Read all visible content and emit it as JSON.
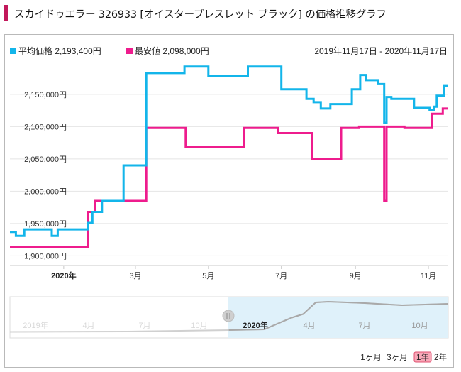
{
  "title": "スカイドゥエラー 326933 [オイスターブレスレット ブラック] の価格推移グラフ",
  "legend": {
    "avg_label": "平均価格 2,193,400円",
    "min_label": "最安値 2,098,000円",
    "date_range": "2019年11月17日 - 2020年11月17日"
  },
  "colors": {
    "avg": "#13b5ea",
    "min": "#ee1c8d",
    "accent": "#c2185b",
    "grid": "#e4e4e4"
  },
  "navigator": {
    "labels_old": [
      "2019年",
      "4月",
      "7月",
      "10月"
    ],
    "labels_new": [
      "2020年",
      "4月",
      "7月",
      "10月"
    ]
  },
  "range_buttons": [
    {
      "label": "1ヶ月",
      "selected": false
    },
    {
      "label": "3ヶ月",
      "selected": false
    },
    {
      "label": "1年",
      "selected": true
    },
    {
      "label": "2年",
      "selected": false
    }
  ],
  "chart_data": {
    "type": "line",
    "x_range": [
      "2019-11-17",
      "2020-11-17"
    ],
    "ylim": [
      1885000,
      2195000
    ],
    "y_ticks": [
      1900000,
      1950000,
      2000000,
      2050000,
      2100000,
      2150000
    ],
    "y_tick_labels": [
      "1,900,000円",
      "1,950,000円",
      "2,000,000円",
      "2,050,000円",
      "2,100,000円",
      "2,150,000円"
    ],
    "x_ticks": [
      {
        "date": "2020-01-01",
        "label": "2020年",
        "bold": true
      },
      {
        "date": "2020-03-01",
        "label": "3月",
        "bold": false
      },
      {
        "date": "2020-05-01",
        "label": "5月",
        "bold": false
      },
      {
        "date": "2020-07-01",
        "label": "7月",
        "bold": false
      },
      {
        "date": "2020-09-01",
        "label": "9月",
        "bold": false
      },
      {
        "date": "2020-11-01",
        "label": "11月",
        "bold": false
      }
    ],
    "step": true,
    "series": [
      {
        "name": "平均価格",
        "points": [
          [
            "2019-11-17",
            1937000
          ],
          [
            "2019-11-22",
            1931000
          ],
          [
            "2019-11-29",
            1941000
          ],
          [
            "2019-12-22",
            1931000
          ],
          [
            "2019-12-27",
            1941000
          ],
          [
            "2020-01-21",
            1951000
          ],
          [
            "2020-01-25",
            1968000
          ],
          [
            "2020-02-02",
            1985000
          ],
          [
            "2020-02-20",
            2040000
          ],
          [
            "2020-03-10",
            2183000
          ],
          [
            "2020-04-11",
            2193000
          ],
          [
            "2020-05-01",
            2178000
          ],
          [
            "2020-06-03",
            2193000
          ],
          [
            "2020-07-01",
            2158000
          ],
          [
            "2020-07-22",
            2143000
          ],
          [
            "2020-07-28",
            2138000
          ],
          [
            "2020-08-03",
            2128000
          ],
          [
            "2020-08-11",
            2135000
          ],
          [
            "2020-08-29",
            2158000
          ],
          [
            "2020-09-05",
            2180000
          ],
          [
            "2020-09-10",
            2172000
          ],
          [
            "2020-09-20",
            2166000
          ],
          [
            "2020-09-25",
            2106000
          ],
          [
            "2020-09-27",
            2146000
          ],
          [
            "2020-10-01",
            2143000
          ],
          [
            "2020-10-20",
            2129000
          ],
          [
            "2020-11-02",
            2126000
          ],
          [
            "2020-11-06",
            2131000
          ],
          [
            "2020-11-08",
            2148000
          ],
          [
            "2020-11-14",
            2163000
          ],
          [
            "2020-11-17",
            2163000
          ]
        ]
      },
      {
        "name": "最安値",
        "points": [
          [
            "2019-11-17",
            1914000
          ],
          [
            "2020-01-21",
            1968000
          ],
          [
            "2020-01-27",
            1985000
          ],
          [
            "2020-03-10",
            2098000
          ],
          [
            "2020-04-12",
            2068000
          ],
          [
            "2020-05-31",
            2098000
          ],
          [
            "2020-06-28",
            2090000
          ],
          [
            "2020-07-27",
            2050000
          ],
          [
            "2020-08-20",
            2098000
          ],
          [
            "2020-09-04",
            2100000
          ],
          [
            "2020-09-25",
            1985000
          ],
          [
            "2020-09-27",
            2100000
          ],
          [
            "2020-10-12",
            2098000
          ],
          [
            "2020-11-04",
            2120000
          ],
          [
            "2020-11-13",
            2128000
          ],
          [
            "2020-11-17",
            2128000
          ]
        ]
      }
    ],
    "navigator_series": {
      "name": "navigator",
      "points": [
        [
          "2018-11-17",
          0.05
        ],
        [
          "2019-06-01",
          0.06
        ],
        [
          "2019-11-17",
          0.1
        ],
        [
          "2020-01-15",
          0.12
        ],
        [
          "2020-03-01",
          0.45
        ],
        [
          "2020-03-20",
          0.55
        ],
        [
          "2020-04-10",
          0.88
        ],
        [
          "2020-05-01",
          0.9
        ],
        [
          "2020-07-01",
          0.86
        ],
        [
          "2020-09-01",
          0.8
        ],
        [
          "2020-11-17",
          0.84
        ]
      ]
    }
  }
}
